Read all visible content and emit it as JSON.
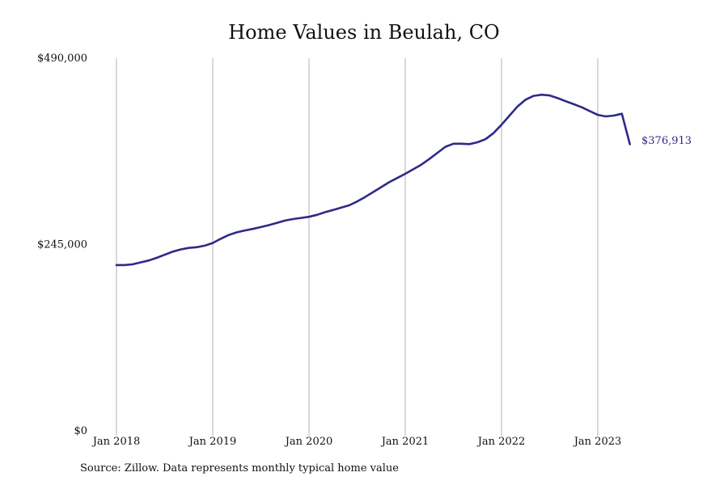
{
  "chart_data": {
    "type": "line",
    "title": "Home Values in Beulah, CO",
    "source": "Source: Zillow. Data represents monthly typical home value",
    "xlabel": "",
    "ylabel": "",
    "y_ticks": [
      {
        "value": 490000,
        "label": "$490,000"
      },
      {
        "value": 245000,
        "label": "$245,000"
      },
      {
        "value": 0,
        "label": "$0"
      }
    ],
    "ylim": [
      0,
      490000
    ],
    "x_ticks": [
      "Jan 2018",
      "Jan 2019",
      "Jan 2020",
      "Jan 2021",
      "Jan 2022",
      "Jan 2023"
    ],
    "grid": "vertical",
    "line_color": "#2e2a87",
    "end_label": "$376,913",
    "series": [
      {
        "x": [
          "2018-01",
          "2018-02",
          "2018-03",
          "2018-04",
          "2018-05",
          "2018-06",
          "2018-07",
          "2018-08",
          "2018-09",
          "2018-10",
          "2018-11",
          "2018-12",
          "2019-01",
          "2019-02",
          "2019-03",
          "2019-04",
          "2019-05",
          "2019-06",
          "2019-07",
          "2019-08",
          "2019-09",
          "2019-10",
          "2019-11",
          "2019-12",
          "2020-01",
          "2020-02",
          "2020-03",
          "2020-04",
          "2020-05",
          "2020-06",
          "2020-07",
          "2020-08",
          "2020-09",
          "2020-10",
          "2020-11",
          "2020-12",
          "2021-01",
          "2021-02",
          "2021-03",
          "2021-04",
          "2021-05",
          "2021-06",
          "2021-07",
          "2021-08",
          "2021-09",
          "2021-10",
          "2021-11",
          "2021-12",
          "2022-01",
          "2022-02",
          "2022-03",
          "2022-04",
          "2022-05",
          "2022-06",
          "2022-07",
          "2022-08",
          "2022-09",
          "2022-10",
          "2022-11",
          "2022-12",
          "2023-01",
          "2023-02",
          "2023-03",
          "2023-04",
          "2023-05"
        ],
        "values": [
          218000,
          218000,
          219000,
          221500,
          224000,
          227500,
          231500,
          235500,
          238500,
          240500,
          241500,
          243500,
          247000,
          252500,
          257500,
          261000,
          263500,
          265500,
          268000,
          270500,
          273500,
          276500,
          278500,
          280000,
          281500,
          284000,
          287500,
          290500,
          293500,
          296500,
          301500,
          307500,
          314000,
          320500,
          327000,
          332500,
          338000,
          344000,
          350000,
          357500,
          365500,
          373500,
          377500,
          377500,
          377000,
          379500,
          383500,
          391500,
          402500,
          414500,
          426500,
          435500,
          440500,
          442000,
          441000,
          437500,
          433500,
          429500,
          425500,
          420500,
          415500,
          413500,
          414500,
          417000,
          376913
        ]
      }
    ]
  }
}
